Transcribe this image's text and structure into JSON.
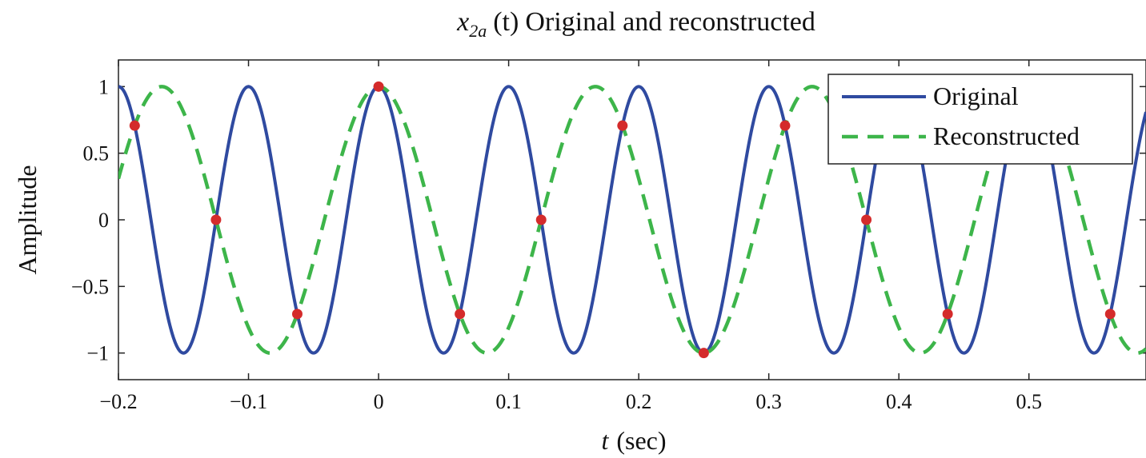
{
  "chart_data": {
    "type": "line",
    "title": "x_2a (t) Original and reconstructed",
    "title_parts": {
      "var": "x",
      "sub": "2a",
      "arg": "(t)",
      "rest": "Original and reconstructed"
    },
    "xlabel": "t (sec)",
    "xlabel_parts": {
      "var": "t",
      "unit": "(sec)"
    },
    "ylabel": "Amplitude",
    "xlim": [
      -0.2,
      0.59
    ],
    "ylim": [
      -1.2,
      1.2
    ],
    "xticks": [
      -0.2,
      -0.1,
      0,
      0.1,
      0.2,
      0.3,
      0.4,
      0.5
    ],
    "xtick_labels": [
      "−0.2",
      "−0.1",
      "0",
      "0.1",
      "0.2",
      "0.3",
      "0.4",
      "0.5"
    ],
    "yticks": [
      1,
      0.5,
      0,
      -0.5,
      -1
    ],
    "ytick_labels": [
      "1",
      "0.5",
      "0",
      "−0.5",
      "−1"
    ],
    "grid": false,
    "legend_position": "top-right",
    "series": [
      {
        "name": "Original",
        "style": "solid",
        "color": "#2f4aa0",
        "function": "cos",
        "frequency_hz": 10,
        "amplitude": 1
      },
      {
        "name": "Reconstructed",
        "style": "dashed",
        "color": "#3db54a",
        "function": "cos",
        "frequency_hz": 6,
        "amplitude": 1
      }
    ],
    "samples": {
      "color": "#d42b2b",
      "points": [
        {
          "x": -0.1875,
          "y": 0.707
        },
        {
          "x": -0.125,
          "y": 0
        },
        {
          "x": -0.0625,
          "y": -0.707
        },
        {
          "x": 0,
          "y": 1
        },
        {
          "x": 0.0625,
          "y": -0.707
        },
        {
          "x": 0.125,
          "y": 0
        },
        {
          "x": 0.1875,
          "y": 0.707
        },
        {
          "x": 0.25,
          "y": -1
        },
        {
          "x": 0.3125,
          "y": 0.707
        },
        {
          "x": 0.375,
          "y": 0
        },
        {
          "x": 0.4375,
          "y": -0.707
        },
        {
          "x": 0.5625,
          "y": -0.707
        }
      ]
    }
  }
}
